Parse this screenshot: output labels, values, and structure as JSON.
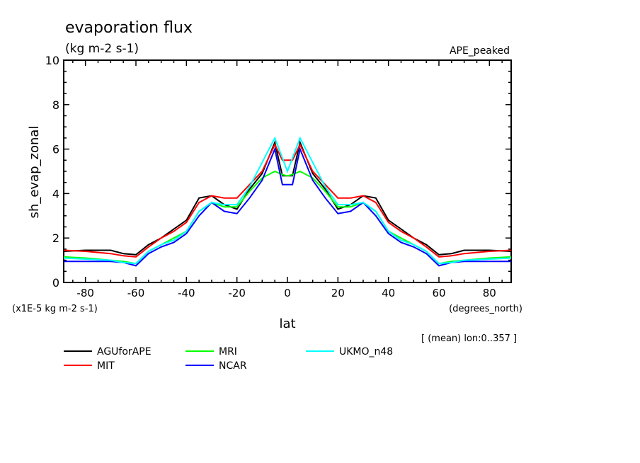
{
  "chart_data": {
    "type": "line",
    "title": "evaporation flux",
    "units": "(kg m-2 s-1)",
    "experiment": "APE_peaked",
    "ylabel": "sh_evap_zonal",
    "yscale_note": "(x1E-5 kg m-2 s-1)",
    "xlabel": "lat",
    "xunits": "(degrees_north)",
    "averaging_note": "[ (mean) lon:0..357 ]",
    "xlim": [
      -88.6,
      88.6
    ],
    "ylim": [
      0,
      10
    ],
    "xticks": [
      -80,
      -60,
      -40,
      -20,
      0,
      20,
      40,
      60,
      80
    ],
    "yticks": [
      0,
      2,
      4,
      6,
      8,
      10
    ],
    "grid": false,
    "legend_position": "bottom",
    "x": [
      -88.6,
      -80,
      -70,
      -65,
      -60,
      -55,
      -50,
      -45,
      -40,
      -35,
      -30,
      -25,
      -20,
      -15,
      -10,
      -5,
      -2,
      0,
      2,
      5,
      10,
      15,
      20,
      25,
      30,
      35,
      40,
      45,
      50,
      55,
      60,
      65,
      70,
      80,
      88.6
    ],
    "series": [
      {
        "name": "AGUforAPE",
        "color": "#000000",
        "values": [
          1.4,
          1.45,
          1.45,
          1.3,
          1.25,
          1.7,
          2.0,
          2.4,
          2.8,
          3.8,
          3.9,
          3.5,
          3.3,
          4.2,
          4.9,
          6.3,
          4.8,
          4.8,
          4.8,
          6.3,
          4.9,
          4.2,
          3.3,
          3.5,
          3.9,
          3.8,
          2.8,
          2.4,
          2.0,
          1.7,
          1.25,
          1.3,
          1.45,
          1.45,
          1.4
        ]
      },
      {
        "name": "MIT",
        "color": "#ff0000",
        "values": [
          1.45,
          1.4,
          1.3,
          1.2,
          1.15,
          1.6,
          2.0,
          2.3,
          2.7,
          3.6,
          3.9,
          3.8,
          3.8,
          4.4,
          5.0,
          6.2,
          5.5,
          5.5,
          5.5,
          6.2,
          5.0,
          4.4,
          3.8,
          3.8,
          3.9,
          3.6,
          2.7,
          2.3,
          2.0,
          1.6,
          1.15,
          1.2,
          1.3,
          1.4,
          1.45
        ]
      },
      {
        "name": "MRI",
        "color": "#00ff00",
        "values": [
          1.15,
          1.1,
          1.0,
          0.95,
          0.85,
          1.4,
          1.7,
          2.0,
          2.3,
          3.2,
          3.6,
          3.4,
          3.4,
          4.1,
          4.7,
          5.0,
          4.85,
          4.8,
          4.85,
          5.0,
          4.7,
          4.1,
          3.4,
          3.4,
          3.6,
          3.2,
          2.3,
          2.0,
          1.7,
          1.4,
          0.85,
          0.95,
          1.0,
          1.1,
          1.15
        ]
      },
      {
        "name": "NCAR",
        "color": "#0000ff",
        "values": [
          0.95,
          0.95,
          0.95,
          0.9,
          0.75,
          1.3,
          1.6,
          1.8,
          2.2,
          3.0,
          3.6,
          3.2,
          3.1,
          3.8,
          4.6,
          6.0,
          4.4,
          4.4,
          4.4,
          6.0,
          4.6,
          3.8,
          3.1,
          3.2,
          3.6,
          3.0,
          2.2,
          1.8,
          1.6,
          1.3,
          0.75,
          0.9,
          0.95,
          0.95,
          0.95
        ]
      },
      {
        "name": "UKMO_n48",
        "color": "#00ffff",
        "values": [
          1.1,
          1.05,
          1.0,
          0.9,
          0.85,
          1.4,
          1.7,
          1.9,
          2.3,
          3.2,
          3.6,
          3.5,
          3.5,
          4.3,
          5.4,
          6.5,
          5.6,
          5.0,
          5.6,
          6.5,
          5.4,
          4.3,
          3.5,
          3.5,
          3.6,
          3.2,
          2.3,
          1.9,
          1.7,
          1.4,
          0.85,
          0.9,
          1.0,
          1.05,
          1.1
        ]
      }
    ]
  }
}
